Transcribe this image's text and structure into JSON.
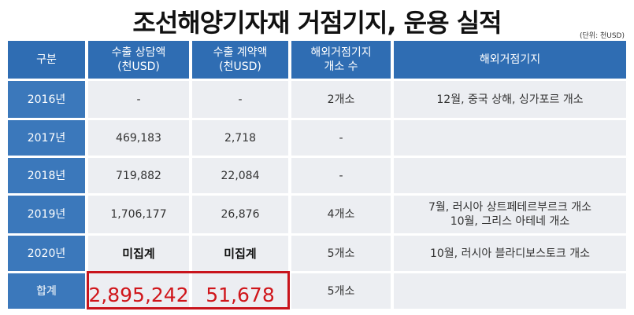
{
  "title": "조선해양기자재 거점기지, 운용 실적",
  "unit_note": "(단위: 천USD)",
  "table": {
    "header": [
      [
        "구분"
      ],
      [
        "수출 상담액",
        "(천USD)"
      ],
      [
        "수출 계약액",
        "(천USD)"
      ],
      [
        "해외거점기지",
        "개소 수"
      ],
      [
        "해외거점기지"
      ]
    ],
    "rows": [
      [
        [
          "2016년"
        ],
        [
          "-"
        ],
        [
          "-"
        ],
        [
          "2개소"
        ],
        [
          "12월, 중국 상해, 싱가포르 개소"
        ]
      ],
      [
        [
          "2017년"
        ],
        [
          "469,183"
        ],
        [
          "2,718"
        ],
        [
          "-"
        ],
        []
      ],
      [
        [
          "2018년"
        ],
        [
          "719,882"
        ],
        [
          "22,084"
        ],
        [
          "-"
        ],
        []
      ],
      [
        [
          "2019년"
        ],
        [
          "1,706,177"
        ],
        [
          "26,876"
        ],
        [
          "4개소"
        ],
        [
          "7월, 러시아 상트페테르부르크 개소",
          "10월, 그리스 아테네 개소"
        ]
      ],
      [
        [
          "2020년"
        ],
        [
          "미집계"
        ],
        [
          "미집계"
        ],
        [
          "5개소"
        ],
        [
          "10월, 러시아 블라디보스토크 개소"
        ]
      ],
      [
        [
          "합계"
        ],
        [
          "2,895,242"
        ],
        [
          "51,678"
        ],
        [
          "5개소"
        ],
        []
      ]
    ]
  }
}
